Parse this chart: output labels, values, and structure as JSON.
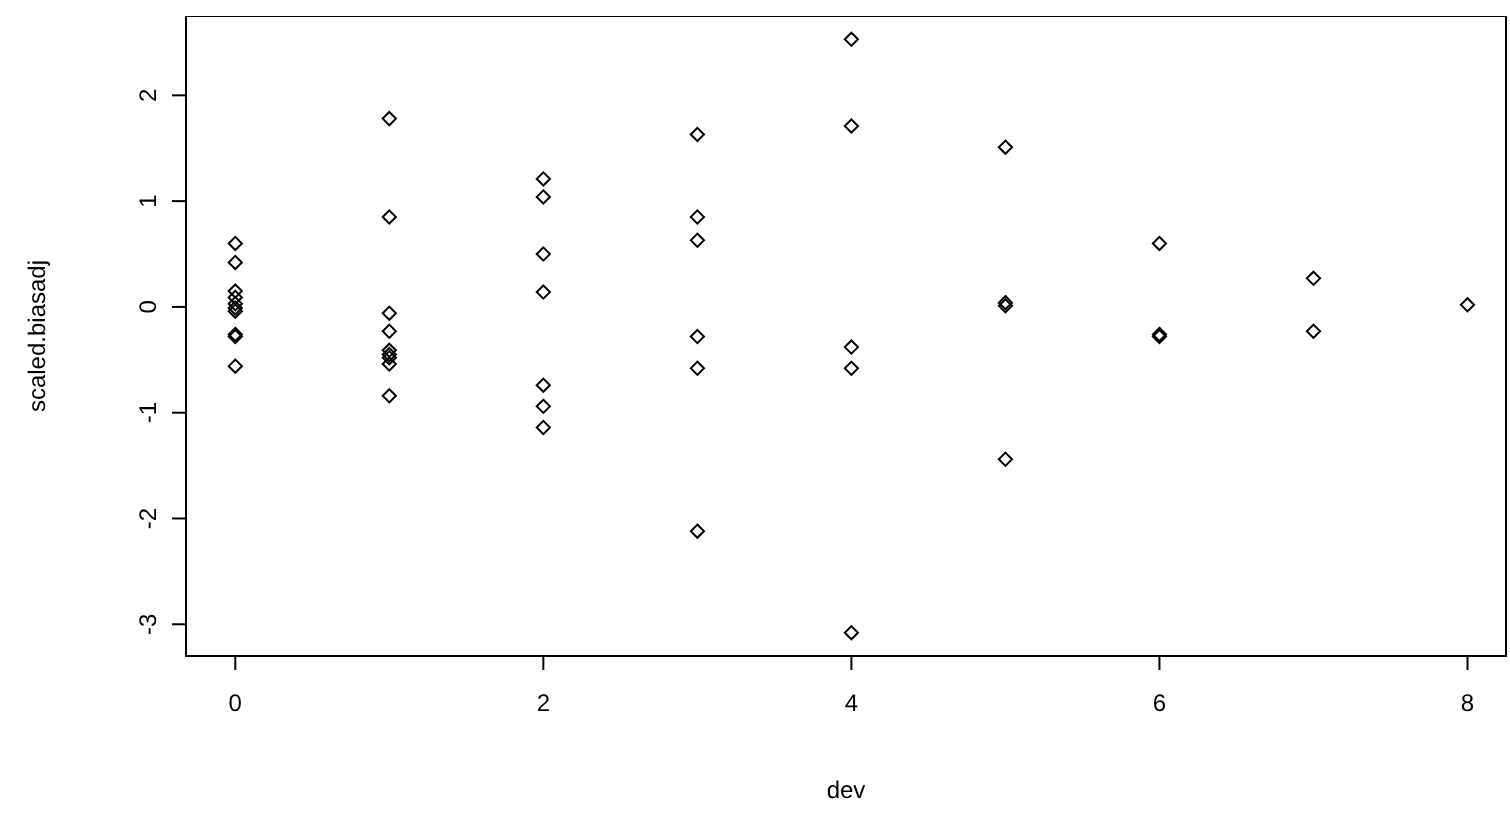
{
  "chart_data": {
    "type": "scatter",
    "xlabel": "dev",
    "ylabel": "scaled.biasadj",
    "xlim": [
      -0.32,
      8.25
    ],
    "ylim": [
      -3.3,
      2.75
    ],
    "xticks": [
      0,
      2,
      4,
      6,
      8
    ],
    "yticks": [
      -3,
      -2,
      -1,
      0,
      1,
      2
    ],
    "grid": false,
    "legend": false,
    "marker": "diamond",
    "series": [
      {
        "color": "#000000",
        "x": [
          0,
          0,
          0,
          0,
          0,
          0,
          0,
          0,
          0,
          0,
          1,
          1,
          1,
          1,
          1,
          1,
          1,
          1,
          1,
          2,
          2,
          2,
          2,
          2,
          2,
          2,
          3,
          3,
          3,
          3,
          3,
          3,
          4,
          4,
          4,
          4,
          4,
          5,
          5,
          5,
          5,
          6,
          6,
          6,
          7,
          7,
          8
        ],
        "values": [
          0.6,
          0.42,
          0.15,
          0.09,
          0.03,
          -0.01,
          -0.04,
          -0.26,
          -0.28,
          -0.56,
          1.78,
          0.85,
          -0.06,
          -0.23,
          -0.41,
          -0.45,
          -0.48,
          -0.54,
          -0.84,
          1.21,
          1.04,
          0.5,
          0.14,
          -0.74,
          -0.94,
          -1.14,
          1.63,
          0.85,
          0.63,
          -0.28,
          -0.58,
          -2.12,
          2.53,
          1.71,
          -0.38,
          -0.58,
          -3.08,
          1.51,
          0.04,
          0.01,
          -1.44,
          0.6,
          -0.26,
          -0.28,
          0.27,
          -0.23,
          0.02
        ]
      }
    ]
  }
}
